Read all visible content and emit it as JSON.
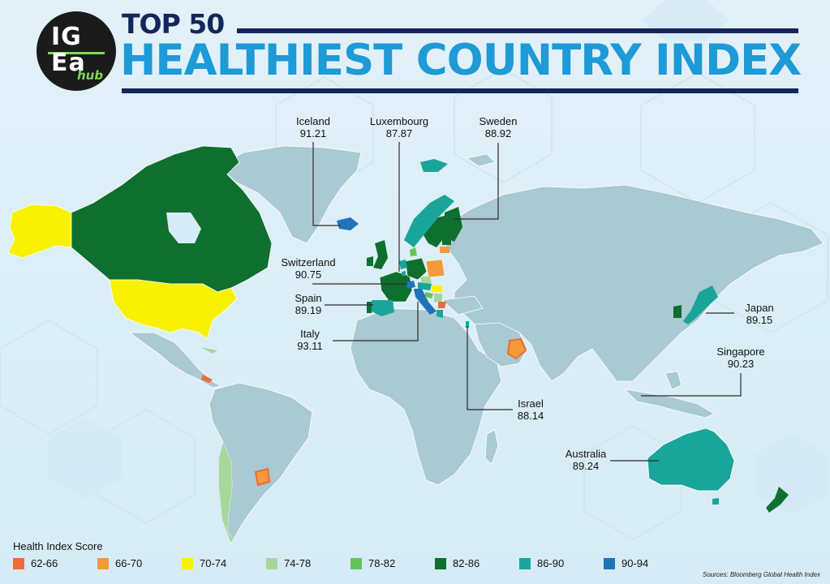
{
  "logo": {
    "line1": "IG",
    "line2": "Ea",
    "line3": "hub"
  },
  "title": {
    "top": "TOP 50",
    "main": "HEALTHIEST COUNTRY INDEX"
  },
  "colors": {
    "c62_66": "#ef6a37",
    "c66_70": "#f39a3b",
    "c70_74": "#f8f200",
    "c74_78": "#a8d79a",
    "c78_82": "#66c35a",
    "c82_86": "#0f6f2e",
    "c86_90": "#1aa59a",
    "c90_94": "#1f73b9",
    "land": "#a9c9d3",
    "leader": "#2b2b2b"
  },
  "callouts": [
    {
      "name": "Iceland",
      "value": "91.21"
    },
    {
      "name": "Luxembourg",
      "value": "87.87"
    },
    {
      "name": "Sweden",
      "value": "88.92"
    },
    {
      "name": "Switzerland",
      "value": "90.75"
    },
    {
      "name": "Spain",
      "value": "89.19"
    },
    {
      "name": "Italy",
      "value": "93.11"
    },
    {
      "name": "Japan",
      "value": "89.15"
    },
    {
      "name": "Singapore",
      "value": "90.23"
    },
    {
      "name": "Israel",
      "value": "88.14"
    },
    {
      "name": "Australia",
      "value": "89.24"
    }
  ],
  "legend": {
    "title": "Health Index Score",
    "items": [
      {
        "label": "62-66",
        "color": "#ef6a37"
      },
      {
        "label": "66-70",
        "color": "#f39a3b"
      },
      {
        "label": "70-74",
        "color": "#f8f200"
      },
      {
        "label": "74-78",
        "color": "#a8d79a"
      },
      {
        "label": "78-82",
        "color": "#66c35a"
      },
      {
        "label": "82-86",
        "color": "#0f6f2e"
      },
      {
        "label": "86-90",
        "color": "#1aa59a"
      },
      {
        "label": "90-94",
        "color": "#1f73b9"
      }
    ]
  },
  "source": "Sources: Bloomberg Global Health Index"
}
